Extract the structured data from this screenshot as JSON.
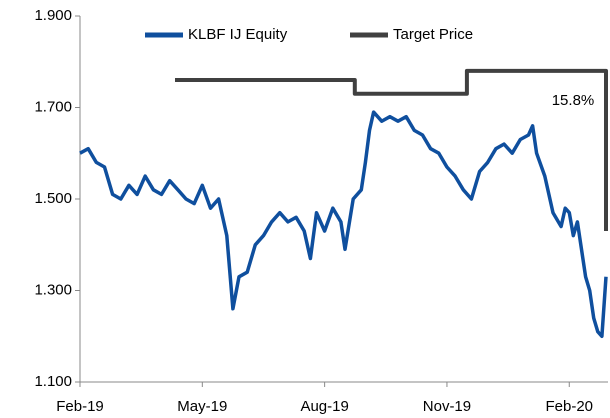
{
  "chart_data": {
    "type": "line",
    "annotation": "15.8%",
    "xlim": [
      0,
      12.95
    ],
    "xticks": [
      {
        "value": 0,
        "label": "Feb-19"
      },
      {
        "value": 3,
        "label": "May-19"
      },
      {
        "value": 6,
        "label": "Aug-19"
      },
      {
        "value": 9,
        "label": "Nov-19"
      },
      {
        "value": 12,
        "label": "Feb-20"
      }
    ],
    "ylim": [
      1.1,
      1.9
    ],
    "yticks": [
      {
        "value": 1.1,
        "label": "1.100"
      },
      {
        "value": 1.3,
        "label": "1.300"
      },
      {
        "value": 1.5,
        "label": "1.500"
      },
      {
        "value": 1.7,
        "label": "1.700"
      },
      {
        "value": 1.9,
        "label": "1.900"
      }
    ],
    "grid": false,
    "legend": "top",
    "series": [
      {
        "name": "KLBF IJ Equity",
        "color": "#0f4f9e",
        "x": [
          0,
          0.2,
          0.4,
          0.6,
          0.8,
          1.0,
          1.2,
          1.4,
          1.6,
          1.8,
          2.0,
          2.2,
          2.4,
          2.6,
          2.8,
          3.0,
          3.2,
          3.4,
          3.6,
          3.75,
          3.9,
          4.1,
          4.3,
          4.5,
          4.7,
          4.9,
          5.1,
          5.3,
          5.5,
          5.65,
          5.8,
          6.0,
          6.2,
          6.4,
          6.5,
          6.7,
          6.9,
          7.0,
          7.1,
          7.2,
          7.4,
          7.6,
          7.8,
          8.0,
          8.2,
          8.4,
          8.6,
          8.8,
          9.0,
          9.2,
          9.4,
          9.6,
          9.8,
          10.0,
          10.2,
          10.4,
          10.6,
          10.8,
          11.0,
          11.1,
          11.2,
          11.4,
          11.6,
          11.8,
          11.9,
          12.0,
          12.1,
          12.2,
          12.4,
          12.5,
          12.6,
          12.7,
          12.8,
          12.9
        ],
        "values": [
          1.6,
          1.61,
          1.58,
          1.57,
          1.51,
          1.5,
          1.53,
          1.51,
          1.55,
          1.52,
          1.51,
          1.54,
          1.52,
          1.5,
          1.49,
          1.53,
          1.48,
          1.5,
          1.42,
          1.26,
          1.33,
          1.34,
          1.4,
          1.42,
          1.45,
          1.47,
          1.45,
          1.46,
          1.43,
          1.37,
          1.47,
          1.43,
          1.48,
          1.45,
          1.39,
          1.5,
          1.52,
          1.58,
          1.65,
          1.69,
          1.67,
          1.68,
          1.67,
          1.68,
          1.65,
          1.64,
          1.61,
          1.6,
          1.57,
          1.55,
          1.52,
          1.5,
          1.56,
          1.58,
          1.61,
          1.62,
          1.6,
          1.63,
          1.64,
          1.66,
          1.6,
          1.55,
          1.47,
          1.44,
          1.48,
          1.47,
          1.42,
          1.45,
          1.33,
          1.3,
          1.24,
          1.21,
          1.2,
          1.33
        ]
      },
      {
        "name": "Target Price",
        "color": "#404040",
        "x": [
          2.33,
          6.74,
          6.74,
          9.49,
          9.49,
          12.9,
          12.9
        ],
        "values": [
          1.76,
          1.76,
          1.73,
          1.73,
          1.78,
          1.78,
          1.43
        ]
      }
    ]
  }
}
